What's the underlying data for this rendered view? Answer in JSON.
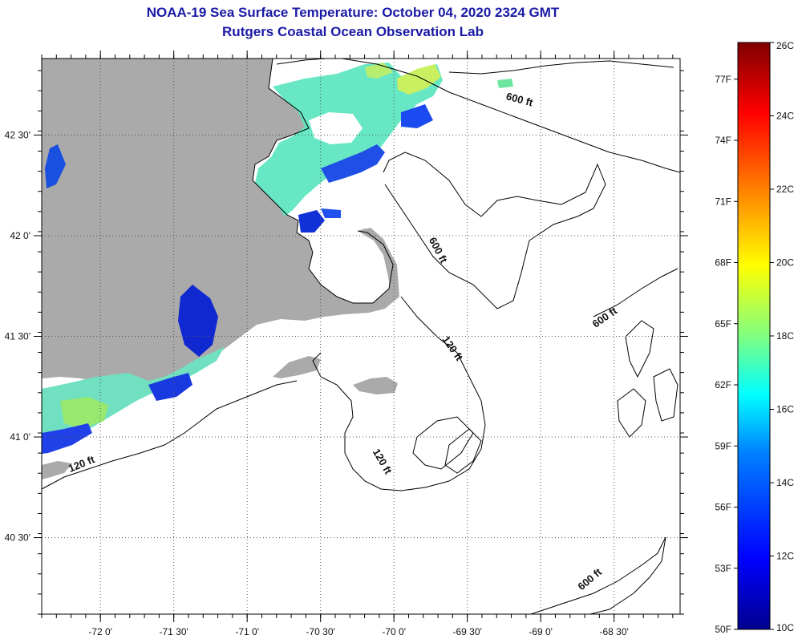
{
  "header": {
    "title": "NOAA-19 Sea Surface Temperature:  October 04, 2020 2324 GMT",
    "subtitle": "Rutgers Coastal Ocean Observation Lab"
  },
  "map": {
    "lon_range": [
      -72.4,
      -68.05
    ],
    "lat_range": [
      40.12,
      42.88
    ],
    "lon_ticks": [
      {
        "value": -72.0,
        "label": "-72 0'"
      },
      {
        "value": -71.5,
        "label": "-71 30'"
      },
      {
        "value": -71.0,
        "label": "-71 0'"
      },
      {
        "value": -70.5,
        "label": "-70 30'"
      },
      {
        "value": -70.0,
        "label": "-70 0'"
      },
      {
        "value": -69.5,
        "label": "-69 30'"
      },
      {
        "value": -69.0,
        "label": "-69 0'"
      },
      {
        "value": -68.5,
        "label": "-68 30'"
      }
    ],
    "lat_ticks": [
      {
        "value": 42.5,
        "label": "42 30'"
      },
      {
        "value": 42.0,
        "label": "42 0'"
      },
      {
        "value": 41.5,
        "label": "41 30'"
      },
      {
        "value": 41.0,
        "label": "41 0'"
      },
      {
        "value": 40.5,
        "label": "40 30'"
      }
    ],
    "grid": true,
    "contour_labels": [
      {
        "text": "600 ft",
        "lon": -69.15,
        "lat": 42.66,
        "angle": 15
      },
      {
        "text": "600 ft",
        "lon": -69.72,
        "lat": 41.92,
        "angle": 62
      },
      {
        "text": "600 ft",
        "lon": -68.55,
        "lat": 41.58,
        "angle": -35
      },
      {
        "text": "120 ft",
        "lon": -69.62,
        "lat": 41.43,
        "angle": 55
      },
      {
        "text": "120 ft",
        "lon": -70.1,
        "lat": 40.87,
        "angle": 60
      },
      {
        "text": "120 ft",
        "lon": -72.12,
        "lat": 40.85,
        "angle": -22
      },
      {
        "text": "600 ft",
        "lon": -68.65,
        "lat": 40.28,
        "angle": -40
      }
    ]
  },
  "colorbar": {
    "vmin_c": 10,
    "vmax_c": 26,
    "celsius_labels": [
      "26C",
      "24C",
      "22C",
      "20C",
      "18C",
      "16C",
      "14C",
      "12C",
      "10C"
    ],
    "fahrenheit_labels": [
      "77F",
      "74F",
      "71F",
      "68F",
      "65F",
      "62F",
      "59F",
      "56F",
      "53F",
      "50F"
    ],
    "colors": [
      "#00008f",
      "#0000ff",
      "#0080ff",
      "#00ffff",
      "#80ff80",
      "#ffff00",
      "#ff8000",
      "#ff0000",
      "#800000"
    ]
  },
  "colors": {
    "land": "#aaaaaa",
    "title": "#1a1aa6"
  }
}
